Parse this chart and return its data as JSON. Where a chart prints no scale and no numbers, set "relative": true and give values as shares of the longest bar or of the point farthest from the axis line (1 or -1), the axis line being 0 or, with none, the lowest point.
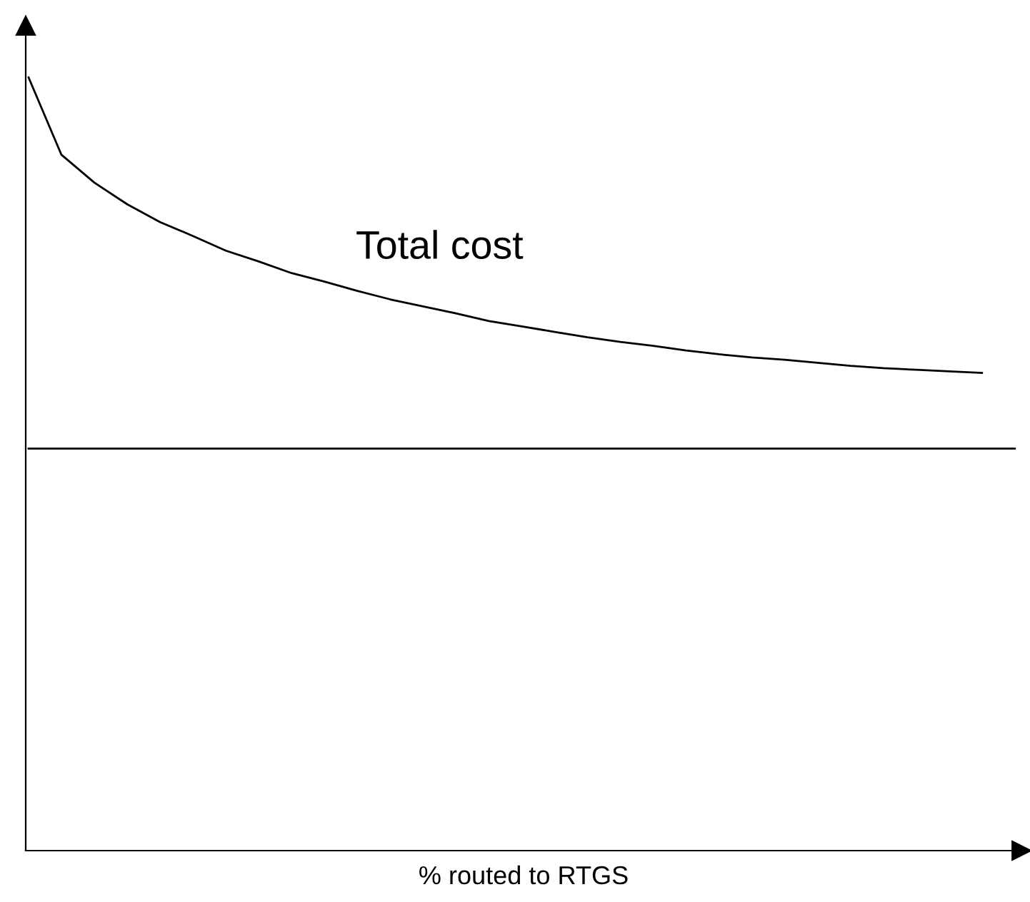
{
  "chart_data": {
    "type": "line",
    "relative": true,
    "xlabel": "% routed to RTGS",
    "categories": [
      null,
      null,
      null,
      null,
      null,
      null,
      null,
      null,
      null,
      null,
      null,
      null,
      null,
      null,
      null,
      null,
      null,
      null,
      null,
      null,
      null,
      null,
      null,
      null,
      null,
      null,
      null,
      null,
      null,
      null,
      null
    ],
    "series": [
      {
        "name": "Total cost",
        "color": "#000000",
        "values": [
          1.0,
          0.9,
          0.864,
          0.836,
          0.813,
          0.795,
          0.776,
          0.762,
          0.747,
          0.736,
          0.724,
          0.713,
          0.704,
          0.695,
          0.685,
          0.678,
          0.671,
          0.664,
          0.658,
          0.653,
          0.647,
          0.642,
          0.638,
          0.635,
          0.631,
          0.627,
          0.624,
          0.622,
          0.62,
          0.618,
          null
        ]
      },
      {
        "color": "#000000",
        "values": [
          0.52,
          0.52,
          0.52,
          0.52,
          0.52,
          0.52,
          0.52,
          0.52,
          0.52,
          0.52,
          0.52,
          0.52,
          0.52,
          0.52,
          0.52,
          0.52,
          0.52,
          0.52,
          0.52,
          0.52,
          0.52,
          0.52,
          0.52,
          0.52,
          0.52,
          0.52,
          0.52,
          0.52,
          0.52,
          0.52,
          0.52
        ]
      }
    ],
    "grid": false,
    "legend": false,
    "marker": "none",
    "line_style": "solid"
  }
}
